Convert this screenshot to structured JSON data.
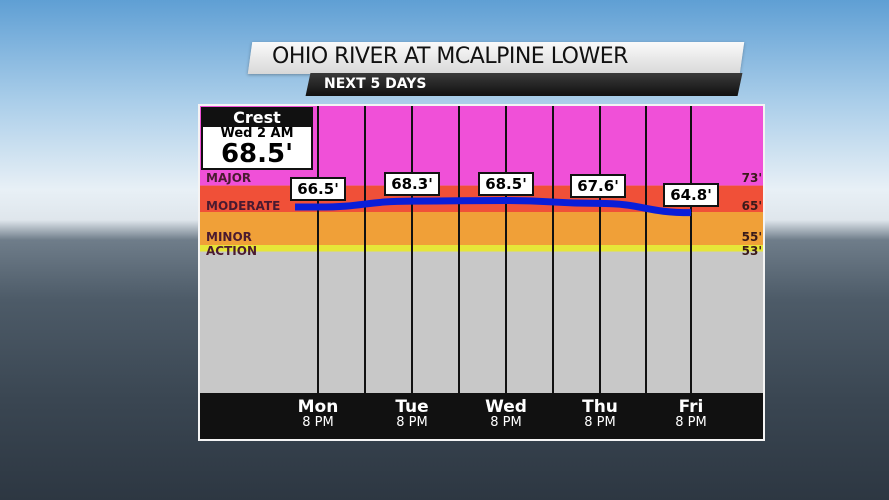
{
  "header": {
    "title": "OHIO RIVER AT MCALPINE LOWER",
    "subtitle": "NEXT 5 DAYS"
  },
  "crest": {
    "label": "Crest",
    "when": "Wed  2 AM",
    "value": "68.5'"
  },
  "chart_data": {
    "type": "line",
    "unit": "ft",
    "ylim": [
      10,
      97.7
    ],
    "categories": [
      {
        "day": "Mon",
        "time": "8 PM"
      },
      {
        "day": "Tue",
        "time": "8 PM"
      },
      {
        "day": "Wed",
        "time": "8 PM"
      },
      {
        "day": "Thu",
        "time": "8 PM"
      },
      {
        "day": "Fri",
        "time": "8 PM"
      }
    ],
    "values": [
      66.5,
      68.3,
      68.5,
      67.6,
      64.8
    ],
    "value_labels": [
      "66.5'",
      "68.3'",
      "68.5'",
      "67.6'",
      "64.8'"
    ],
    "line_color": "#0a1ed8",
    "flood_stages": [
      {
        "name": "MAJOR",
        "stage": 73,
        "label": "73'",
        "color": "#f050d8"
      },
      {
        "name": "MODERATE",
        "stage": 65,
        "label": "65'",
        "color": "#f05038"
      },
      {
        "name": "MINOR",
        "stage": 55,
        "label": "55'",
        "color": "#f0a038"
      },
      {
        "name": "ACTION",
        "stage": 53,
        "label": "53'",
        "color": "#e6e638"
      }
    ]
  }
}
